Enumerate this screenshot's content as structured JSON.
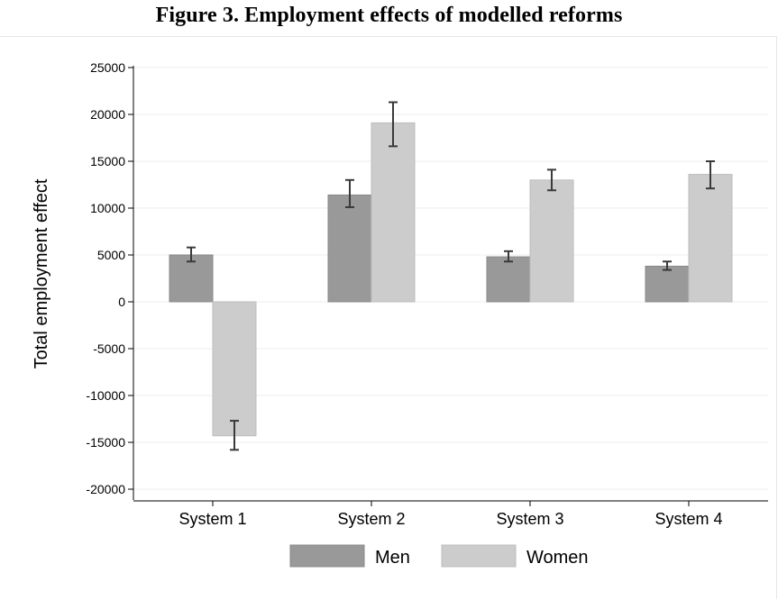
{
  "title": "Figure 3. Employment effects of modelled reforms",
  "chart_data": {
    "type": "bar",
    "categories": [
      "System 1",
      "System 2",
      "System 3",
      "System 4"
    ],
    "ylabel": "Total employment effect",
    "xlabel": "",
    "ylim": [
      -20000,
      25000
    ],
    "yticks": [
      25000,
      20000,
      15000,
      10000,
      5000,
      0,
      -5000,
      -10000,
      -15000,
      -20000
    ],
    "grid": true,
    "legend_position": "bottom",
    "series": [
      {
        "name": "Men",
        "color": "#999999",
        "values": [
          5000,
          11400,
          4800,
          3800
        ],
        "error_low": [
          4300,
          10100,
          4300,
          3400
        ],
        "error_high": [
          5800,
          13000,
          5400,
          4300
        ]
      },
      {
        "name": "Women",
        "color": "#cccccc",
        "values": [
          -14300,
          19100,
          13000,
          13600
        ],
        "error_low": [
          -15800,
          16600,
          11900,
          12100
        ],
        "error_high": [
          -12700,
          21300,
          14100,
          15000
        ]
      }
    ]
  }
}
